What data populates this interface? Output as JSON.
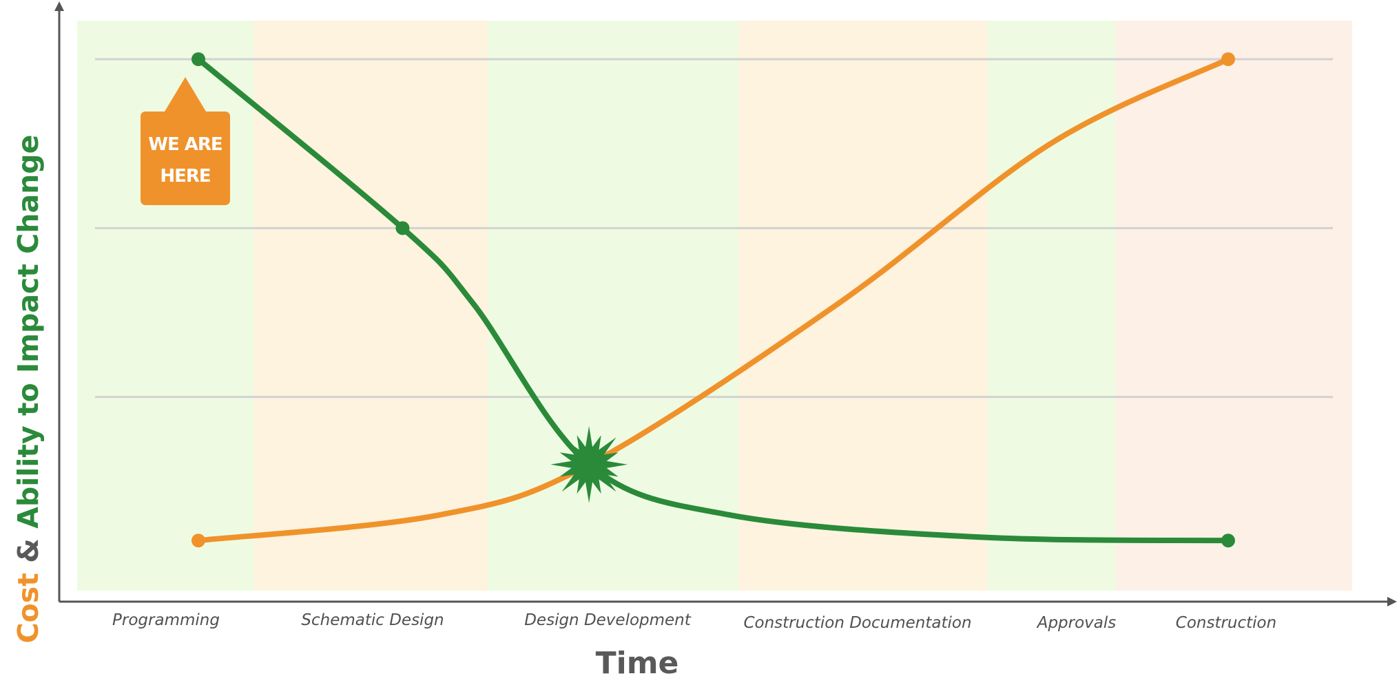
{
  "chart_data": {
    "type": "line",
    "xlabel": "Time",
    "ylabel_parts": [
      {
        "text": "Cost",
        "color": "#f0922b"
      },
      {
        "text": " & ",
        "color": "#595959"
      },
      {
        "text": "Ability to Impact Change",
        "color": "#2a8a3a"
      }
    ],
    "categories": [
      "Programming",
      "Schematic Design",
      "Design Development",
      "Construction Documentation",
      "Approvals",
      "Construction"
    ],
    "band_colors": [
      "#eefbe2",
      "#fdf3de",
      "#eefbe2",
      "#fdf3de",
      "#eefbe2",
      "#fdf0e6"
    ],
    "ylim": [
      0,
      3
    ],
    "grid": true,
    "gridlines": [
      1,
      2,
      3
    ],
    "series": [
      {
        "name": "Cost",
        "color": "#f0922b",
        "points": [
          [
            0,
            0.15
          ],
          [
            1.35,
            0.3
          ],
          [
            2.2,
            0.6
          ],
          [
            3.6,
            1.55
          ],
          [
            4.8,
            2.5
          ],
          [
            5.8,
            3.0
          ]
        ]
      },
      {
        "name": "Ability to Impact Change",
        "color": "#2a8a3a",
        "points": [
          [
            0,
            3.0
          ],
          [
            1.15,
            2.0
          ],
          [
            1.55,
            1.55
          ],
          [
            2.2,
            0.6
          ],
          [
            3.0,
            0.3
          ],
          [
            4.4,
            0.17
          ],
          [
            5.8,
            0.15
          ]
        ]
      }
    ],
    "markers": {
      "cost": [
        [
          0,
          0.15
        ],
        [
          5.8,
          3.0
        ]
      ],
      "ability": [
        [
          0,
          3.0
        ],
        [
          1.15,
          2.0
        ],
        [
          5.8,
          0.15
        ]
      ]
    },
    "crossing": {
      "x": 2.2,
      "y": 0.6,
      "color": "#2a8a3a"
    },
    "callout": {
      "lines": [
        "WE ARE",
        "HERE"
      ],
      "color": "#f0922b",
      "x": 0
    }
  }
}
